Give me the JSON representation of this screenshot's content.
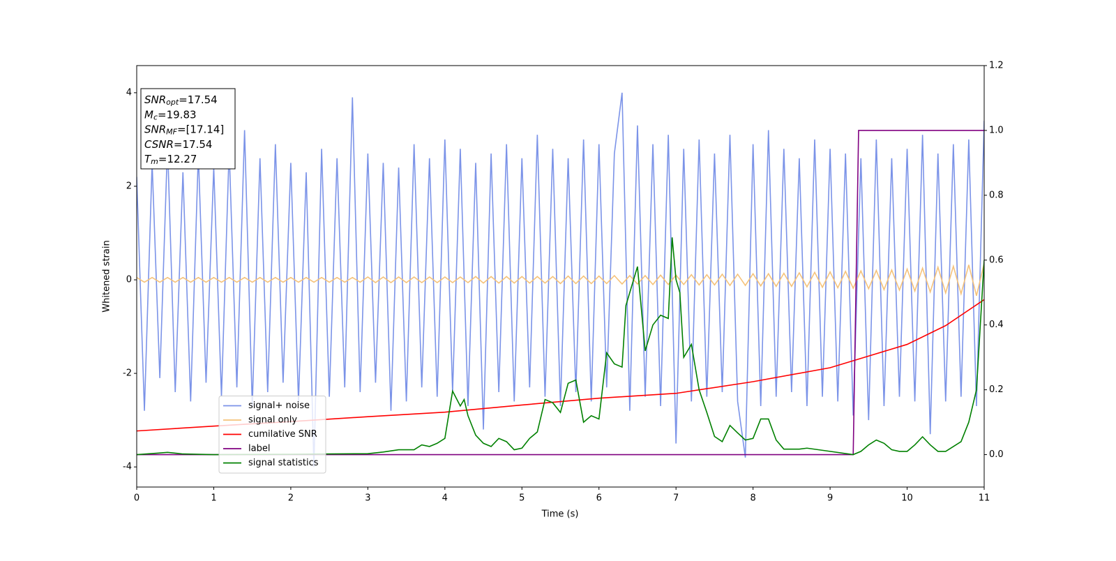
{
  "chart_data": {
    "type": "line",
    "xlabel": "Time (s)",
    "ylabel": "Whitened strain",
    "xlim": [
      0,
      11
    ],
    "xticks": [
      0,
      1,
      2,
      3,
      4,
      5,
      6,
      7,
      8,
      9,
      10,
      11
    ],
    "ylim": [
      -4.43,
      4.58
    ],
    "yticks": [
      -4,
      -2,
      0,
      2,
      4
    ],
    "y2lim": [
      -0.1,
      1.2
    ],
    "y2ticks": [
      {
        "value": 0,
        "label": "0.0"
      },
      0.2,
      0.4,
      0.6,
      0.8,
      {
        "value": 1,
        "label": "1.0"
      },
      1.2
    ],
    "legend": "lower left",
    "annotations": [
      {
        "main": "SNR",
        "sub": "opt",
        "text": "=17.54"
      },
      {
        "main": "M",
        "sub": "c",
        "text": "=19.83"
      },
      {
        "main": "SNR",
        "sub": "MF",
        "text": "=[17.14]"
      },
      {
        "main": "CSNR",
        "text": "=17.54"
      },
      {
        "main": "T",
        "sub": "m",
        "text": "=12.27"
      }
    ],
    "series": [
      {
        "name": "signal+ noise",
        "color": "#7b93e8",
        "x": [
          0,
          0.1,
          0.2,
          0.3,
          0.4,
          0.5,
          0.6,
          0.7,
          0.8,
          0.9,
          1,
          1.1,
          1.2,
          1.3,
          1.4,
          1.5,
          1.6,
          1.7,
          1.8,
          1.9,
          2,
          2.1,
          2.2,
          2.3,
          2.4,
          2.5,
          2.6,
          2.7,
          2.8,
          2.9,
          3,
          3.1,
          3.2,
          3.3,
          3.4,
          3.5,
          3.6,
          3.7,
          3.8,
          3.9,
          4,
          4.1,
          4.2,
          4.3,
          4.4,
          4.5,
          4.6,
          4.7,
          4.8,
          4.9,
          5,
          5.1,
          5.2,
          5.3,
          5.4,
          5.5,
          5.6,
          5.7,
          5.8,
          5.9,
          6,
          6.1,
          6.2,
          6.3,
          6.4,
          6.5,
          6.6,
          6.7,
          6.8,
          6.9,
          7,
          7.1,
          7.2,
          7.3,
          7.4,
          7.5,
          7.6,
          7.7,
          7.8,
          7.9,
          8,
          8.1,
          8.2,
          8.3,
          8.4,
          8.5,
          8.6,
          8.7,
          8.8,
          8.9,
          9,
          9.1,
          9.2,
          9.3,
          9.4,
          9.5,
          9.6,
          9.7,
          9.8,
          9.9,
          10,
          10.1,
          10.2,
          10.3,
          10.4,
          10.5,
          10.6,
          10.7,
          10.8,
          10.9,
          11
        ],
        "values": [
          2.2,
          -2.8,
          2.5,
          -2.1,
          2.9,
          -2.4,
          2.3,
          -2.6,
          2.7,
          -2.2,
          2.4,
          -2.5,
          2.8,
          -2.3,
          3.2,
          -2.7,
          2.6,
          -2.4,
          2.9,
          -2.2,
          2.5,
          -2.6,
          2.3,
          -4.0,
          2.8,
          -2.5,
          2.6,
          -2.3,
          3.9,
          -2.4,
          2.7,
          -2.2,
          2.5,
          -2.8,
          2.4,
          -2.6,
          2.9,
          -2.3,
          2.6,
          -2.5,
          3.0,
          -2.4,
          2.8,
          -2.7,
          2.5,
          -3.2,
          2.7,
          -2.4,
          2.9,
          -2.6,
          2.6,
          -2.3,
          3.1,
          -2.5,
          2.8,
          -2.7,
          2.6,
          -2.4,
          3.0,
          -2.6,
          2.9,
          -2.3,
          2.7,
          4.0,
          -2.8,
          3.3,
          -2.5,
          2.9,
          -2.7,
          3.1,
          -3.5,
          2.8,
          -2.6,
          3.0,
          -2.5,
          2.7,
          -2.4,
          3.1,
          -2.6,
          -3.8,
          2.9,
          -2.7,
          3.2,
          -2.5,
          2.8,
          -2.4,
          2.6,
          -2.7,
          3.0,
          -2.5,
          2.8,
          -2.6,
          2.7,
          -2.9,
          2.6,
          -3.0,
          3.0,
          -2.7,
          2.6,
          -2.5,
          2.8,
          -2.6,
          3.1,
          -3.3,
          2.7,
          -2.6,
          2.9,
          -2.5,
          3.0,
          -2.7,
          3.4
        ]
      },
      {
        "name": "signal only",
        "color": "#f5c27a",
        "x": [
          0,
          0.1,
          0.2,
          0.3,
          0.4,
          0.5,
          0.6,
          0.7,
          0.8,
          0.9,
          1,
          1.1,
          1.2,
          1.3,
          1.4,
          1.5,
          1.6,
          1.7,
          1.8,
          1.9,
          2,
          2.1,
          2.2,
          2.3,
          2.4,
          2.5,
          2.6,
          2.7,
          2.8,
          2.9,
          3,
          3.1,
          3.2,
          3.3,
          3.4,
          3.5,
          3.6,
          3.7,
          3.8,
          3.9,
          4,
          4.1,
          4.2,
          4.3,
          4.4,
          4.5,
          4.6,
          4.7,
          4.8,
          4.9,
          5,
          5.1,
          5.2,
          5.3,
          5.4,
          5.5,
          5.6,
          5.7,
          5.8,
          5.9,
          6,
          6.1,
          6.2,
          6.3,
          6.4,
          6.5,
          6.6,
          6.7,
          6.8,
          6.9,
          7,
          7.1,
          7.2,
          7.3,
          7.4,
          7.5,
          7.6,
          7.7,
          7.8,
          7.9,
          8,
          8.1,
          8.2,
          8.3,
          8.4,
          8.5,
          8.6,
          8.7,
          8.8,
          8.9,
          9,
          9.1,
          9.2,
          9.3,
          9.4,
          9.5,
          9.6,
          9.7,
          9.8,
          9.9,
          10,
          10.1,
          10.2,
          10.3,
          10.4,
          10.5,
          10.6,
          10.7,
          10.8,
          10.9,
          11
        ],
        "values": [
          0.05,
          -0.05,
          0.05,
          -0.05,
          0.05,
          -0.05,
          0.05,
          -0.05,
          0.05,
          -0.05,
          0.05,
          -0.05,
          0.05,
          -0.05,
          0.05,
          -0.05,
          0.05,
          -0.05,
          0.05,
          -0.05,
          0.05,
          -0.05,
          0.05,
          -0.05,
          0.05,
          -0.05,
          0.05,
          -0.05,
          0.05,
          -0.05,
          0.06,
          -0.06,
          0.06,
          -0.06,
          0.06,
          -0.06,
          0.06,
          -0.06,
          0.06,
          -0.06,
          0.06,
          -0.06,
          0.06,
          -0.06,
          0.07,
          -0.07,
          0.07,
          -0.07,
          0.07,
          -0.07,
          0.07,
          -0.07,
          0.07,
          -0.07,
          0.07,
          -0.08,
          0.08,
          -0.08,
          0.08,
          -0.08,
          0.08,
          -0.08,
          0.09,
          -0.09,
          0.09,
          -0.09,
          0.09,
          -0.1,
          0.1,
          -0.1,
          0.1,
          -0.1,
          0.11,
          -0.11,
          0.11,
          -0.11,
          0.12,
          -0.12,
          0.12,
          -0.12,
          0.13,
          -0.13,
          0.13,
          -0.14,
          0.14,
          -0.14,
          0.15,
          -0.15,
          0.16,
          -0.16,
          0.17,
          -0.17,
          0.18,
          -0.18,
          0.19,
          -0.19,
          0.2,
          -0.21,
          0.21,
          -0.22,
          0.23,
          -0.24,
          0.25,
          -0.26,
          0.27,
          -0.28,
          0.29,
          -0.3,
          0.32,
          -0.34,
          0.35
        ]
      },
      {
        "name": "cumilative SNR",
        "color": "#ff0000",
        "axis": "y2",
        "x": [
          0,
          1,
          2,
          3,
          4,
          5,
          6,
          7,
          8,
          9,
          10,
          10.5,
          11
        ],
        "values": [
          0.073,
          0.088,
          0.102,
          0.117,
          0.131,
          0.153,
          0.174,
          0.189,
          0.225,
          0.268,
          0.34,
          0.398,
          0.478
        ]
      },
      {
        "name": "label",
        "color": "#800080",
        "axis": "y2",
        "x": [
          0,
          9.3,
          9.37,
          11
        ],
        "values": [
          0,
          0,
          1,
          1
        ]
      },
      {
        "name": "signal statistics",
        "color": "#008000",
        "axis": "y2",
        "x": [
          0,
          0.3,
          0.4,
          0.6,
          1,
          2,
          2.5,
          3,
          3.2,
          3.4,
          3.6,
          3.7,
          3.8,
          3.9,
          4,
          4.1,
          4.2,
          4.25,
          4.3,
          4.4,
          4.5,
          4.6,
          4.7,
          4.8,
          4.9,
          5,
          5.1,
          5.2,
          5.3,
          5.4,
          5.5,
          5.6,
          5.7,
          5.8,
          5.9,
          6,
          6.1,
          6.2,
          6.3,
          6.35,
          6.4,
          6.5,
          6.6,
          6.7,
          6.8,
          6.9,
          6.95,
          7,
          7.05,
          7.1,
          7.2,
          7.3,
          7.4,
          7.5,
          7.6,
          7.7,
          7.8,
          7.9,
          8,
          8.1,
          8.2,
          8.3,
          8.4,
          8.5,
          8.6,
          8.7,
          9,
          9.3,
          9.4,
          9.5,
          9.6,
          9.7,
          9.8,
          9.9,
          10,
          10.1,
          10.2,
          10.3,
          10.4,
          10.5,
          10.6,
          10.7,
          10.8,
          10.9,
          11
        ],
        "values": [
          0,
          0.005,
          0.007,
          0.002,
          0,
          0.001,
          0.002,
          0.003,
          0.008,
          0.015,
          0.015,
          0.03,
          0.025,
          0.035,
          0.05,
          0.196,
          0.15,
          0.17,
          0.12,
          0.06,
          0.035,
          0.025,
          0.05,
          0.04,
          0.015,
          0.02,
          0.05,
          0.07,
          0.17,
          0.16,
          0.13,
          0.22,
          0.23,
          0.1,
          0.12,
          0.11,
          0.314,
          0.28,
          0.27,
          0.46,
          0.5,
          0.58,
          0.32,
          0.4,
          0.43,
          0.42,
          0.67,
          0.54,
          0.5,
          0.3,
          0.34,
          0.2,
          0.13,
          0.056,
          0.04,
          0.09,
          0.067,
          0.045,
          0.05,
          0.11,
          0.11,
          0.045,
          0.017,
          0.017,
          0.017,
          0.02,
          0.01,
          0,
          0.01,
          0.03,
          0.045,
          0.035,
          0.015,
          0.01,
          0.01,
          0.03,
          0.055,
          0.03,
          0.01,
          0.01,
          0.025,
          0.04,
          0.1,
          0.2,
          0.6
        ]
      }
    ]
  }
}
